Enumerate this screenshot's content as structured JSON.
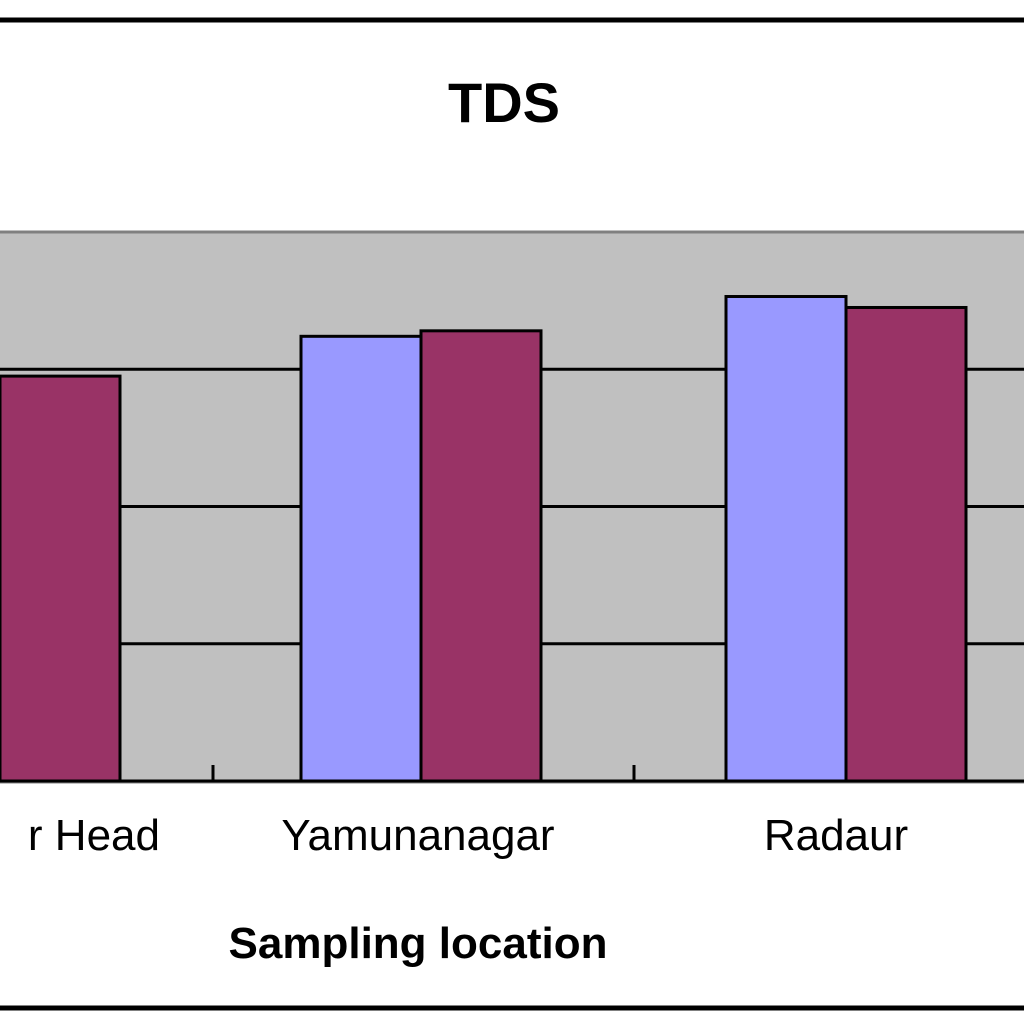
{
  "chart_data": {
    "type": "bar",
    "title": "TDS",
    "xlabel": "Sampling location",
    "ylabel": "",
    "categories": [
      "r Head",
      "Yamunanagar",
      "Radaur"
    ],
    "series": [
      {
        "values": [
          null,
          324,
          353
        ],
        "color": "#9999ff"
      },
      {
        "values": [
          295,
          328,
          345
        ],
        "color": "#993366"
      }
    ],
    "ylim": [
      0,
      400
    ],
    "gridlines": [
      100,
      200,
      300
    ],
    "grid": true,
    "plot_background": "#c0c0c0"
  }
}
